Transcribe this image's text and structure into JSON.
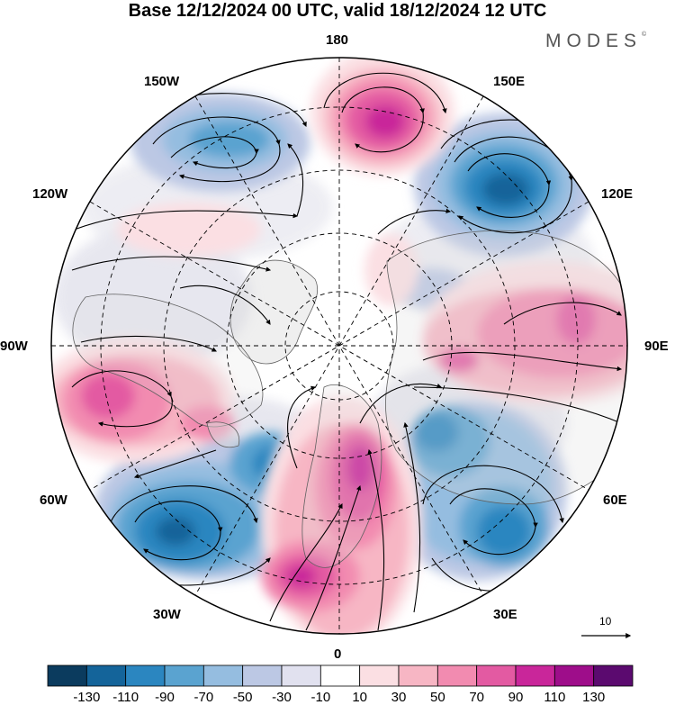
{
  "title": "Base 12/12/2024 00 UTC, valid 18/12/2024 12 UTC",
  "brand": "MODES",
  "brand_mark": "©",
  "longitude_labels": {
    "n180": "180",
    "e150": "150E",
    "w150": "150W",
    "e120": "120E",
    "w120": "120W",
    "e90": "90E",
    "w90": "90W",
    "e60": "60E",
    "w60": "60W",
    "e30": "30E",
    "w30": "30W",
    "s0": "0"
  },
  "vector_scale_label": "10",
  "colorbar": {
    "ticks": [
      "-130",
      "-110",
      "-90",
      "-70",
      "-50",
      "-30",
      "-10",
      "10",
      "30",
      "50",
      "70",
      "90",
      "110",
      "130"
    ],
    "colors": [
      "#0b3b5e",
      "#14649a",
      "#2b86c0",
      "#5aa3d0",
      "#95bde0",
      "#bcc8e4",
      "#e1e1ef",
      "#ffffff",
      "#fbdfe3",
      "#f7b6c4",
      "#f28bb0",
      "#e35aa2",
      "#c9269a",
      "#9e0d8a",
      "#5b0a6f"
    ]
  },
  "colors": {
    "land": "#e8e8e8",
    "coast": "#606060",
    "grid": "#000000"
  }
}
